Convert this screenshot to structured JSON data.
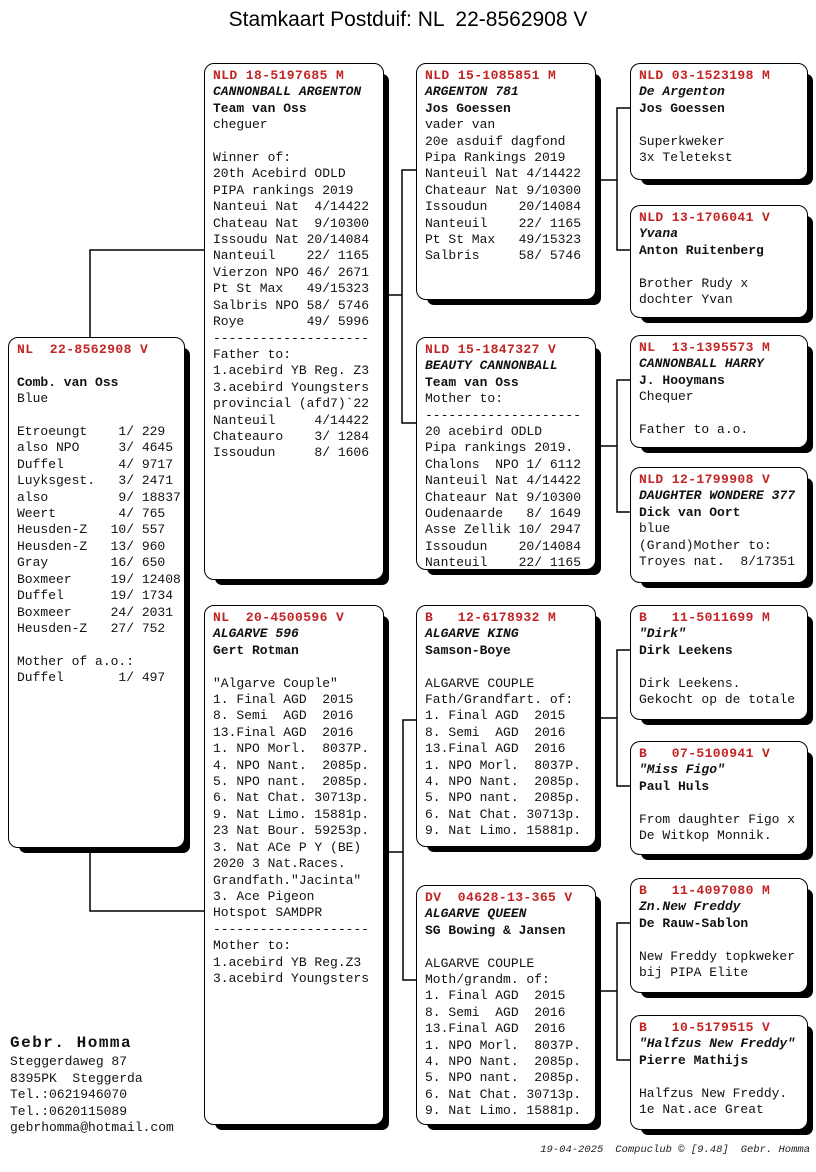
{
  "page": {
    "title": "Stamkaart Postduif: NL  22-8562908 V"
  },
  "colors": {
    "ring_red": "#c22323",
    "ink": "#111111",
    "paper": "#ffffff",
    "line_black": "#000000"
  },
  "pedigree": {
    "boxes": [
      {
        "ring": "NL  22-8562908 V",
        "lines": [
          "",
          [
            "Comb. van Oss",
            "b"
          ],
          "Blue",
          "",
          "Etroeungt    1/ 229",
          "also NPO     3/ 4645",
          "Duffel       4/ 9717",
          "Luyksgest.   3/ 2471",
          "also         9/ 18837",
          "Weert        4/ 765",
          "Heusden-Z   10/ 557",
          "Heusden-Z   13/ 960",
          "Gray        16/ 650",
          "Boxmeer     19/ 12408",
          "Duffel      19/ 1734",
          "Boxmeer     24/ 2031",
          "Heusden-Z   27/ 752",
          "",
          "Mother of a.o.:",
          "Duffel       1/ 497"
        ]
      },
      {
        "ring": "NLD 18-5197685 M",
        "lines": [
          [
            "CANNONBALL ARGENTON",
            "bi"
          ],
          [
            "Team van Oss",
            "b"
          ],
          "cheguer",
          "",
          "Winner of:",
          "20th Acebird ODLD",
          "PIPA rankings 2019",
          "Nanteui Nat  4/14422",
          "Chateau Nat  9/10300",
          "Issoudu Nat 20/14084",
          "Nanteuil    22/ 1165",
          "Vierzon NPO 46/ 2671",
          "Pt St Max   49/15323",
          "Salbris NPO 58/ 5746",
          "Roye        49/ 5996",
          "--------------------",
          "Father to:",
          "1.acebird YB Reg. Z3",
          "3.acebird Youngsters",
          "provincial (afd7)`22",
          "Nanteuil     4/14422",
          "Chateauro    3/ 1284",
          "Issoudun     8/ 1606"
        ]
      },
      {
        "ring": "NL  20-4500596 V",
        "lines": [
          [
            "ALGARVE 596",
            "bi"
          ],
          [
            "Gert Rotman",
            "b"
          ],
          "",
          "\"Algarve Couple\"",
          "1. Final AGD  2015",
          "8. Semi  AGD  2016",
          "13.Final AGD  2016",
          "1. NPO Morl.  8037P.",
          "4. NPO Nant.  2085p.",
          "5. NPO nant.  2085p.",
          "6. Nat Chat. 30713p.",
          "9. Nat Limo. 15881p.",
          "23 Nat Bour. 59253p.",
          "3. Nat ACe P Y (BE)",
          "2020 3 Nat.Races.",
          "Grandfath.\"Jacinta\"",
          "3. Ace Pigeon",
          "Hotspot SAMDPR",
          "--------------------",
          "Mother to:",
          "1.acebird YB Reg.Z3",
          "3.acebird Youngsters"
        ]
      },
      {
        "ring": "NLD 15-1085851 M",
        "lines": [
          [
            "ARGENTON 781",
            "bi"
          ],
          [
            "Jos Goessen",
            "b"
          ],
          "vader van",
          "20e asduif dagfond",
          "Pipa Rankings 2019",
          "Nanteuil Nat 4/14422",
          "Chateaur Nat 9/10300",
          "Issoudun    20/14084",
          "Nanteuil    22/ 1165",
          "Pt St Max   49/15323",
          "Salbris     58/ 5746"
        ]
      },
      {
        "ring": "NLD 15-1847327 V",
        "lines": [
          [
            "BEAUTY CANNONBALL",
            "bi"
          ],
          [
            "Team van Oss",
            "b"
          ],
          "Mother to:",
          "--------------------",
          "20 acebird ODLD",
          "Pipa rankings 2019.",
          "Chalons  NPO 1/ 6112",
          "Nanteuil Nat 4/14422",
          "Chateaur Nat 9/10300",
          "Oudenaarde   8/ 1649",
          "Asse Zellik 10/ 2947",
          "Issoudun    20/14084",
          "Nanteuil    22/ 1165"
        ]
      },
      {
        "ring": "B   12-6178932 M",
        "lines": [
          [
            "ALGARVE KING",
            "bi"
          ],
          [
            "Samson-Boye",
            "b"
          ],
          "",
          "ALGARVE COUPLE",
          "Fath/Grandfart. of:",
          "1. Final AGD  2015",
          "8. Semi  AGD  2016",
          "13.Final AGD  2016",
          "1. NPO Morl.  8037P.",
          "4. NPO Nant.  2085p.",
          "5. NPO nant.  2085p.",
          "6. Nat Chat. 30713p.",
          "9. Nat Limo. 15881p."
        ]
      },
      {
        "ring": "DV  04628-13-365 V",
        "lines": [
          [
            "ALGARVE QUEEN",
            "bi"
          ],
          [
            "SG Bowing & Jansen",
            "b"
          ],
          "",
          "ALGARVE COUPLE",
          "Moth/grandm. of:",
          "1. Final AGD  2015",
          "8. Semi  AGD  2016",
          "13.Final AGD  2016",
          "1. NPO Morl.  8037P.",
          "4. NPO Nant.  2085p.",
          "5. NPO nant.  2085p.",
          "6. Nat Chat. 30713p.",
          "9. Nat Limo. 15881p."
        ]
      },
      {
        "ring": "NLD 03-1523198 M",
        "lines": [
          [
            "De Argenton",
            "bi"
          ],
          [
            "Jos Goessen",
            "b"
          ],
          "",
          "Superkweker",
          "3x Teletekst"
        ]
      },
      {
        "ring": "NLD 13-1706041 V",
        "lines": [
          [
            "Yvana",
            "bi"
          ],
          [
            "Anton Ruitenberg",
            "b"
          ],
          "",
          "Brother Rudy x",
          "dochter Yvan"
        ]
      },
      {
        "ring": "NL  13-1395573 M",
        "lines": [
          [
            "CANNONBALL HARRY",
            "bi"
          ],
          [
            "J. Hooymans",
            "b"
          ],
          "Chequer",
          "",
          "Father to a.o."
        ]
      },
      {
        "ring": "NLD 12-1799908 V",
        "lines": [
          [
            "DAUGHTER WONDERE 377",
            "bi"
          ],
          [
            "Dick van Oort",
            "b"
          ],
          "blue",
          "(Grand)Mother to:",
          "Troyes nat.  8/17351"
        ]
      },
      {
        "ring": "B   11-5011699 M",
        "lines": [
          [
            "\"Dirk\"",
            "bi"
          ],
          [
            "Dirk Leekens",
            "b"
          ],
          "",
          "Dirk Leekens.",
          "Gekocht op de totale"
        ]
      },
      {
        "ring": "B   07-5100941 V",
        "lines": [
          [
            "\"Miss Figo\"",
            "bi"
          ],
          [
            "Paul Huls",
            "b"
          ],
          "",
          "From daughter Figo x",
          "De Witkop Monnik."
        ]
      },
      {
        "ring": "B   11-4097080 M",
        "lines": [
          [
            "Zn.New Freddy",
            "bi"
          ],
          [
            "De Rauw-Sablon",
            "b"
          ],
          "",
          "New Freddy topkweker",
          "bij PIPA Elite"
        ]
      },
      {
        "ring": "B   10-5179515 V",
        "lines": [
          [
            "\"Halfzus New Freddy\"",
            "bi"
          ],
          [
            "Pierre Mathijs",
            "b"
          ],
          "",
          "Halfzus New Freddy.",
          "1e Nat.ace Great"
        ]
      }
    ]
  },
  "owner": {
    "name": "Gebr. Homma",
    "address1": "Steggerdaweg 87",
    "address2": "8395PK  Steggerda",
    "tel1": "Tel.:0621946070",
    "tel2": "Tel.:0620115089",
    "email": "gebrhomma@hotmail.com"
  },
  "footer": {
    "date": "19-04-2025",
    "software": "Compuclub © [9.48]",
    "name": "Gebr. Homma"
  }
}
